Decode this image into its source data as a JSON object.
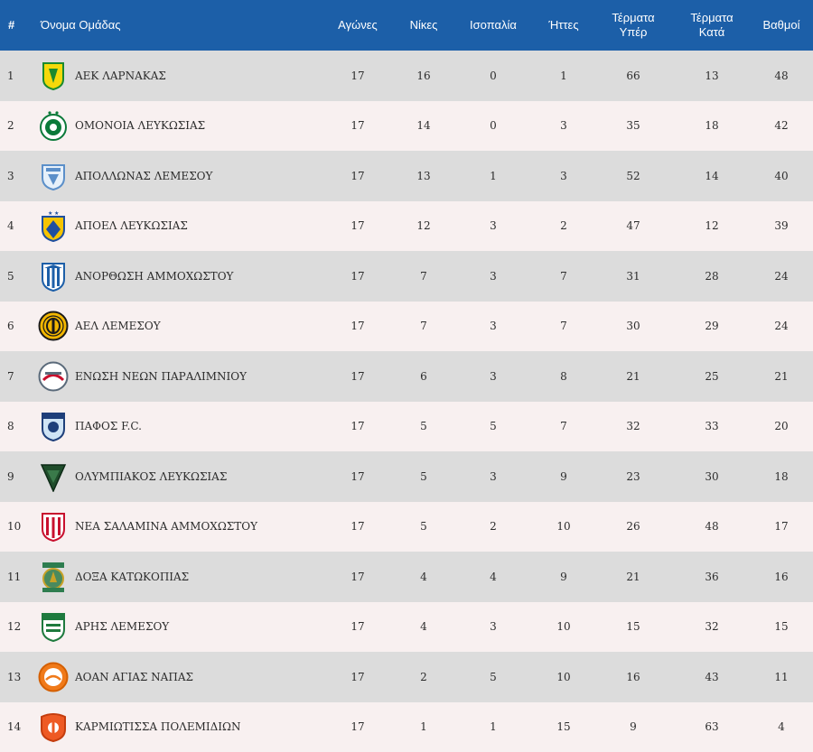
{
  "headers": {
    "rank": "#",
    "team": "Όνομα Ομάδας",
    "played": "Αγώνες",
    "wins": "Νίκες",
    "draws": "Ισοπαλία",
    "losses": "Ήττες",
    "goals_for_1": "Τέρματα",
    "goals_for_2": "Υπέρ",
    "goals_against_1": "Τέρματα",
    "goals_against_2": "Κατά",
    "points": "Βαθμοί"
  },
  "rows": [
    {
      "rank": "1",
      "team": "ΑΕΚ ΛΑΡΝΑΚΑΣ",
      "logo": "aek-larnaca-logo-icon",
      "played": "17",
      "wins": "16",
      "draws": "0",
      "losses": "1",
      "gf": "66",
      "ga": "13",
      "pts": "48"
    },
    {
      "rank": "2",
      "team": "ΟΜΟΝΟΙΑ ΛΕΥΚΩΣΙΑΣ",
      "logo": "omonoia-logo-icon",
      "played": "17",
      "wins": "14",
      "draws": "0",
      "losses": "3",
      "gf": "35",
      "ga": "18",
      "pts": "42"
    },
    {
      "rank": "3",
      "team": "ΑΠΟΛΛΩΝΑΣ ΛΕΜΕΣΟΥ",
      "logo": "apollon-logo-icon",
      "played": "17",
      "wins": "13",
      "draws": "1",
      "losses": "3",
      "gf": "52",
      "ga": "14",
      "pts": "40"
    },
    {
      "rank": "4",
      "team": "ΑΠΟΕΛ ΛΕΥΚΩΣΙΑΣ",
      "logo": "apoel-logo-icon",
      "played": "17",
      "wins": "12",
      "draws": "3",
      "losses": "2",
      "gf": "47",
      "ga": "12",
      "pts": "39"
    },
    {
      "rank": "5",
      "team": "ΑΝΟΡΘΩΣΗ ΑΜΜΟΧΩΣΤΟΥ",
      "logo": "anorthosis-logo-icon",
      "played": "17",
      "wins": "7",
      "draws": "3",
      "losses": "7",
      "gf": "31",
      "ga": "28",
      "pts": "24"
    },
    {
      "rank": "6",
      "team": "ΑΕΛ ΛΕΜΕΣΟΥ",
      "logo": "ael-logo-icon",
      "played": "17",
      "wins": "7",
      "draws": "3",
      "losses": "7",
      "gf": "30",
      "ga": "29",
      "pts": "24"
    },
    {
      "rank": "7",
      "team": "ΕΝΩΣΗ ΝΕΩΝ ΠΑΡΑΛΙΜΝΙΟΥ",
      "logo": "enp-logo-icon",
      "played": "17",
      "wins": "6",
      "draws": "3",
      "losses": "8",
      "gf": "21",
      "ga": "25",
      "pts": "21"
    },
    {
      "rank": "8",
      "team": "ΠΑΦΟΣ F.C.",
      "logo": "pafos-logo-icon",
      "played": "17",
      "wins": "5",
      "draws": "5",
      "losses": "7",
      "gf": "32",
      "ga": "33",
      "pts": "20"
    },
    {
      "rank": "9",
      "team": "ΟΛΥΜΠΙΑΚΟΣ ΛΕΥΚΩΣΙΑΣ",
      "logo": "olympiakos-logo-icon",
      "played": "17",
      "wins": "5",
      "draws": "3",
      "losses": "9",
      "gf": "23",
      "ga": "30",
      "pts": "18"
    },
    {
      "rank": "10",
      "team": "ΝΕΑ ΣΑΛΑΜΙΝΑ ΑΜΜΟΧΩΣΤΟΥ",
      "logo": "nea-salamina-logo-icon",
      "played": "17",
      "wins": "5",
      "draws": "2",
      "losses": "10",
      "gf": "26",
      "ga": "48",
      "pts": "17"
    },
    {
      "rank": "11",
      "team": "ΔΟΞΑ ΚΑΤΩΚΟΠΙΑΣ",
      "logo": "doxa-logo-icon",
      "played": "17",
      "wins": "4",
      "draws": "4",
      "losses": "9",
      "gf": "21",
      "ga": "36",
      "pts": "16"
    },
    {
      "rank": "12",
      "team": "ΑΡΗΣ ΛΕΜΕΣΟΥ",
      "logo": "aris-logo-icon",
      "played": "17",
      "wins": "4",
      "draws": "3",
      "losses": "10",
      "gf": "15",
      "ga": "32",
      "pts": "15"
    },
    {
      "rank": "13",
      "team": "ΑΟΑΝ ΑΓΙΑΣ ΝΑΠΑΣ",
      "logo": "ayia-napa-logo-icon",
      "played": "17",
      "wins": "2",
      "draws": "5",
      "losses": "10",
      "gf": "16",
      "ga": "43",
      "pts": "11"
    },
    {
      "rank": "14",
      "team": "ΚΑΡΜΙΩΤΙΣΣΑ ΠΟΛΕΜΙΔΙΩΝ",
      "logo": "karmiotissa-logo-icon",
      "played": "17",
      "wins": "1",
      "draws": "1",
      "losses": "15",
      "gf": "9",
      "ga": "63",
      "pts": "4"
    }
  ],
  "colors": {
    "header_bg": "#1c5fa8",
    "row_odd": "#dcdcdc",
    "row_even": "#f8f0f0"
  }
}
